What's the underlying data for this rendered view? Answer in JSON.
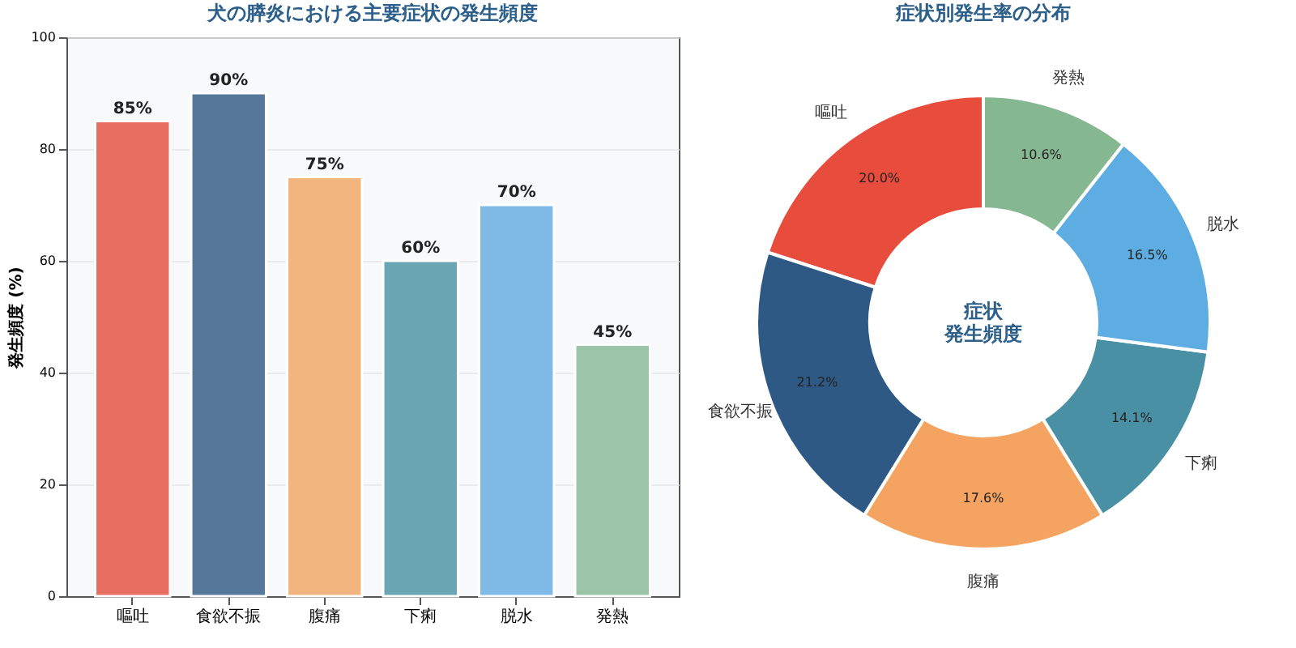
{
  "chart_data": [
    {
      "type": "bar",
      "title": "犬の膵炎における主要症状の発生頻度",
      "ylabel": "発生頻度 (%)",
      "categories": [
        "嘔吐",
        "食欲不振",
        "腹痛",
        "下痢",
        "脱水",
        "発熱"
      ],
      "values": [
        85,
        90,
        75,
        60,
        70,
        45
      ],
      "colors": [
        "#e96e62",
        "#557799",
        "#f3b57f",
        "#6aa5b3",
        "#7fbbe6",
        "#9bc4a8"
      ],
      "value_labels": [
        "85%",
        "90%",
        "75%",
        "60%",
        "70%",
        "45%"
      ],
      "ylim": [
        0,
        100
      ],
      "yticks": [
        0,
        20,
        40,
        60,
        80,
        100
      ],
      "grid": "y",
      "legend": false
    },
    {
      "type": "donut",
      "title": "症状別発生率の分布",
      "categories": [
        "嘔吐",
        "食欲不振",
        "腹痛",
        "下痢",
        "脱水",
        "発熱"
      ],
      "values": [
        20.0,
        21.2,
        17.6,
        14.1,
        16.5,
        10.6
      ],
      "colors": [
        "#e74c3c",
        "#2e5984",
        "#f4a460",
        "#4a90a4",
        "#5dade2",
        "#85b791"
      ],
      "value_labels": [
        "20.0%",
        "21.2%",
        "17.6%",
        "14.1%",
        "16.5%",
        "10.6%"
      ],
      "annotations": [
        "症状",
        "発生頻度"
      ],
      "legend": false
    }
  ]
}
